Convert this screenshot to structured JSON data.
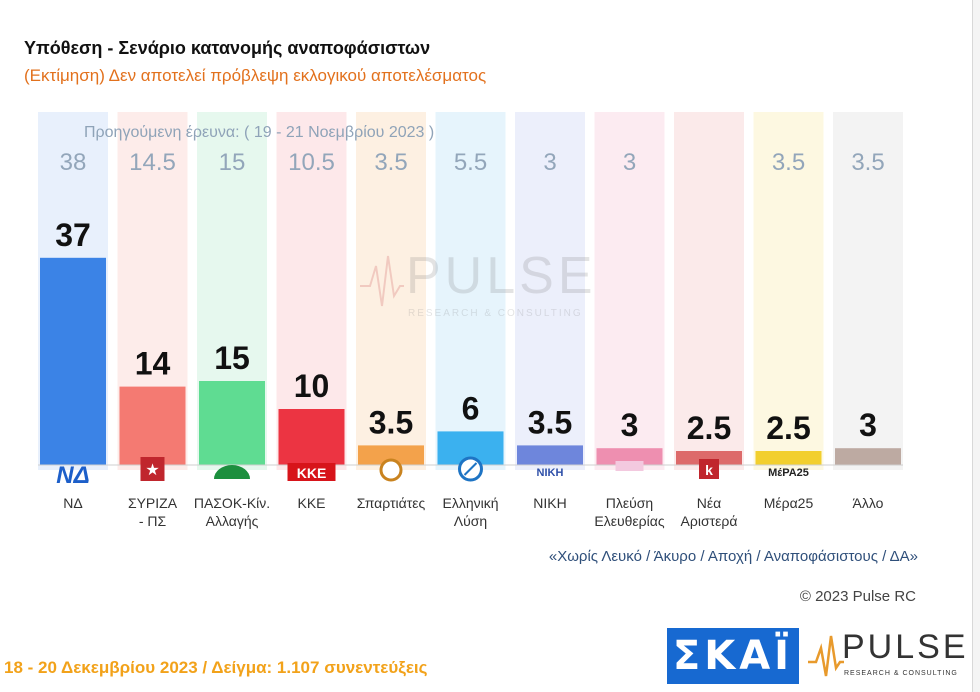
{
  "header": {
    "title": "Υπόθεση - Σενάριο κατανομής αναποφάσιστων",
    "subtitle": "(Εκτίμηση)   Δεν αποτελεί πρόβλεψη εκλογικού αποτελέσματος"
  },
  "previous_survey_label": "Προηγούμενη έρευνα:  ( 19 - 21 Νοεμβρίου 2023 )",
  "watermark": {
    "word": "PULSE",
    "sub": "RESEARCH & CONSULTING"
  },
  "chart_data": {
    "type": "bar",
    "categories": [
      "ΝΔ",
      "ΣΥΡΙΖΑ - ΠΣ",
      "ΠΑΣΟΚ-Κίν. Αλλαγής",
      "ΚΚΕ",
      "Σπαρτιάτες",
      "Ελληνική Λύση",
      "ΝΙΚΗ",
      "Πλεύση Ελευθερίας",
      "Νέα Αριστερά",
      "Μέρα25",
      "Άλλο"
    ],
    "category_lines": [
      [
        "ΝΔ"
      ],
      [
        "ΣΥΡΙΖΑ",
        "- ΠΣ"
      ],
      [
        "ΠΑΣΟΚ-Κίν.",
        "Αλλαγής"
      ],
      [
        "ΚΚΕ"
      ],
      [
        "Σπαρτιάτες"
      ],
      [
        "Ελληνική",
        "Λύση"
      ],
      [
        "ΝΙΚΗ"
      ],
      [
        "Πλεύση",
        "Ελευθερίας"
      ],
      [
        "Νέα",
        "Αριστερά"
      ],
      [
        "Μέρα25"
      ],
      [
        "Άλλο"
      ]
    ],
    "values": [
      37,
      14,
      15,
      10,
      3.5,
      6,
      3.5,
      3,
      2.5,
      2.5,
      3
    ],
    "value_labels": [
      "37",
      "14",
      "15",
      "10",
      "3.5",
      "6",
      "3.5",
      "3",
      "2.5",
      "2.5",
      "3"
    ],
    "previous_values": [
      "38",
      "14.5",
      "15",
      "10.5",
      "3.5",
      "5.5",
      "3",
      "3",
      "",
      "3.5",
      "3.5"
    ],
    "colors": [
      "#3b83e6",
      "#f47a72",
      "#5fdc92",
      "#ec3442",
      "#f3a24b",
      "#3bb1ef",
      "#6e86dc",
      "#ee8fb0",
      "#dd6a6a",
      "#f2cf2e",
      "#bdaaa2"
    ],
    "column_tints": [
      "#e8f0fc",
      "#fdecea",
      "#e6f8ee",
      "#fde8ea",
      "#fdf0e2",
      "#e6f4fc",
      "#eceffb",
      "#fcebf1",
      "#fbeaea",
      "#fdf8e1",
      "#f3f3f3"
    ],
    "logos": [
      {
        "icon": "nd-logo",
        "text": "ΝΔ",
        "color": "#1d5fc9"
      },
      {
        "icon": "syriza-star-logo",
        "text": "★",
        "color": "#c0262d"
      },
      {
        "icon": "pasok-sun-logo",
        "text": "",
        "color": "#1c8f3e"
      },
      {
        "icon": "kke-logo",
        "text": "ΚΚΕ",
        "color": "#d7141a"
      },
      {
        "icon": "spartiates-helmet-logo",
        "text": "",
        "color": "#c9831f"
      },
      {
        "icon": "elliniki-lysi-compass-logo",
        "text": "",
        "color": "#1e74c4"
      },
      {
        "icon": "niki-logo",
        "text": "ΝΙΚΗ",
        "color": "#2e4fa8"
      },
      {
        "icon": "plefsi-logo",
        "text": "",
        "color": "#8a3b8f"
      },
      {
        "icon": "nea-aristera-logo",
        "text": "",
        "color": "#c0262d"
      },
      {
        "icon": "mera25-logo",
        "text": "ΜέΡΑ25",
        "color": "#222222"
      },
      {
        "icon": "",
        "text": "",
        "color": ""
      }
    ],
    "ylim": [
      0,
      40
    ]
  },
  "note": "«Χωρίς Λευκό / Άκυρο / Αποχή / Αναποφάσιστους / ΔΑ»",
  "copyright": "© 2023 Pulse RC",
  "footer": {
    "date_sample": "18 - 20  Δεκεμβρίου  2023  /  Δείγμα:  1.107  συνεντεύξεις",
    "broadcaster_logo": "ΣΚΑΪ",
    "pulse_logo_word": "PULSE",
    "pulse_logo_sub": "RESEARCH & CONSULTING"
  }
}
